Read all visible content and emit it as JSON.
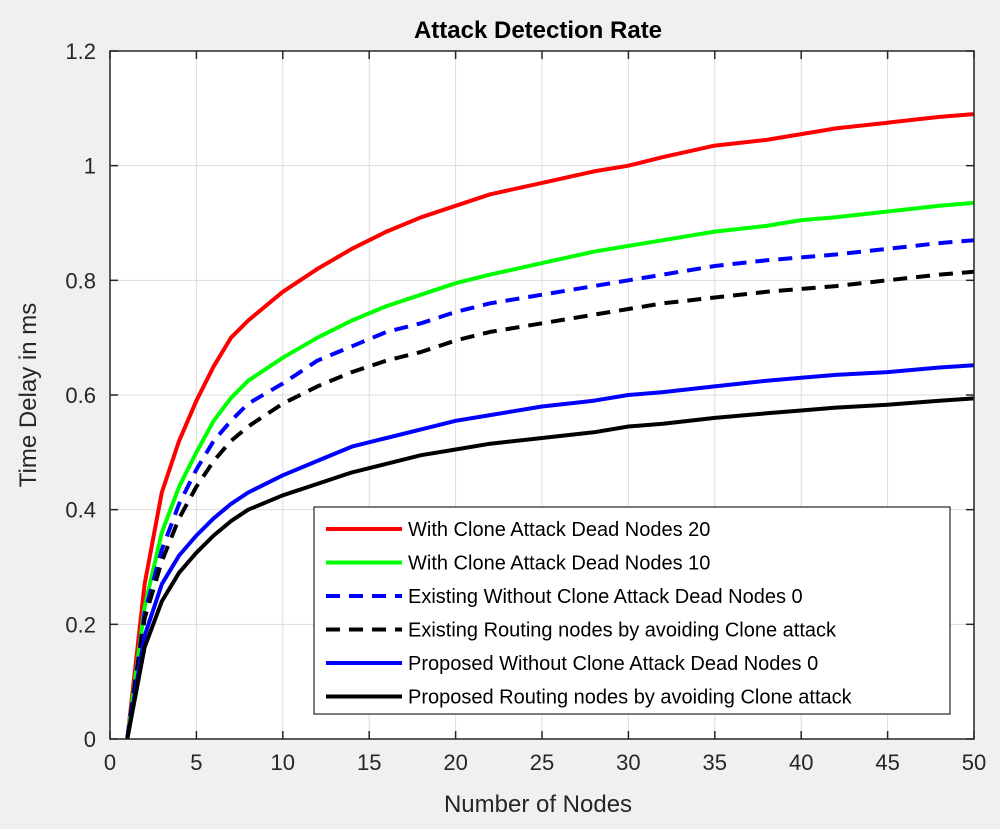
{
  "chart_data": {
    "type": "line",
    "title": "Attack Detection Rate",
    "xlabel": "Number of Nodes",
    "ylabel": "Time Delay in ms",
    "xlim": [
      0,
      50
    ],
    "ylim": [
      0,
      1.2
    ],
    "xticks": [
      "0",
      "5",
      "10",
      "15",
      "20",
      "25",
      "30",
      "35",
      "40",
      "45",
      "50"
    ],
    "yticks": [
      "0",
      "0.2",
      "0.4",
      "0.6",
      "0.8",
      "1",
      "1.2"
    ],
    "grid": true,
    "legend_position": "bottom-right",
    "x": [
      1,
      2,
      3,
      4,
      5,
      6,
      7,
      8,
      10,
      12,
      14,
      16,
      18,
      20,
      22,
      25,
      28,
      30,
      32,
      35,
      38,
      40,
      42,
      45,
      48,
      50
    ],
    "series": [
      {
        "name": "With Clone Attack Dead Nodes 20",
        "color": "#ff0000",
        "style": "solid",
        "values": [
          0.0,
          0.27,
          0.43,
          0.52,
          0.59,
          0.65,
          0.7,
          0.73,
          0.78,
          0.82,
          0.855,
          0.885,
          0.91,
          0.93,
          0.95,
          0.97,
          0.99,
          1.0,
          1.015,
          1.035,
          1.045,
          1.055,
          1.065,
          1.075,
          1.085,
          1.09
        ]
      },
      {
        "name": "With Clone Attack Dead Nodes 10",
        "color": "#00ff00",
        "style": "solid",
        "values": [
          0.0,
          0.23,
          0.36,
          0.44,
          0.5,
          0.555,
          0.595,
          0.625,
          0.665,
          0.7,
          0.73,
          0.755,
          0.775,
          0.795,
          0.81,
          0.83,
          0.85,
          0.86,
          0.87,
          0.885,
          0.895,
          0.905,
          0.91,
          0.92,
          0.93,
          0.935
        ]
      },
      {
        "name": "Existing Without Clone Attack Dead Nodes 0",
        "color": "#0000ff",
        "style": "dashed",
        "values": [
          0.0,
          0.22,
          0.33,
          0.41,
          0.47,
          0.52,
          0.555,
          0.585,
          0.62,
          0.66,
          0.685,
          0.71,
          0.725,
          0.745,
          0.76,
          0.775,
          0.79,
          0.8,
          0.81,
          0.825,
          0.835,
          0.84,
          0.845,
          0.855,
          0.865,
          0.87
        ]
      },
      {
        "name": "Existing Routing nodes by avoiding Clone attack",
        "color": "#000000",
        "style": "dashed",
        "values": [
          0.0,
          0.21,
          0.31,
          0.385,
          0.44,
          0.485,
          0.52,
          0.545,
          0.585,
          0.615,
          0.64,
          0.66,
          0.675,
          0.695,
          0.71,
          0.725,
          0.74,
          0.75,
          0.76,
          0.77,
          0.78,
          0.785,
          0.79,
          0.8,
          0.81,
          0.815
        ]
      },
      {
        "name": "Proposed Without Clone Attack Dead Nodes 0",
        "color": "#0000ff",
        "style": "solid",
        "values": [
          0.0,
          0.18,
          0.27,
          0.32,
          0.355,
          0.385,
          0.41,
          0.43,
          0.46,
          0.485,
          0.51,
          0.525,
          0.54,
          0.555,
          0.565,
          0.58,
          0.59,
          0.6,
          0.605,
          0.615,
          0.625,
          0.63,
          0.635,
          0.64,
          0.648,
          0.652
        ]
      },
      {
        "name": "Proposed Routing nodes by avoiding Clone attack",
        "color": "#000000",
        "style": "solid",
        "values": [
          0.0,
          0.16,
          0.24,
          0.29,
          0.325,
          0.355,
          0.38,
          0.4,
          0.425,
          0.445,
          0.465,
          0.48,
          0.495,
          0.505,
          0.515,
          0.525,
          0.535,
          0.545,
          0.55,
          0.56,
          0.568,
          0.573,
          0.578,
          0.583,
          0.59,
          0.594
        ]
      }
    ]
  }
}
